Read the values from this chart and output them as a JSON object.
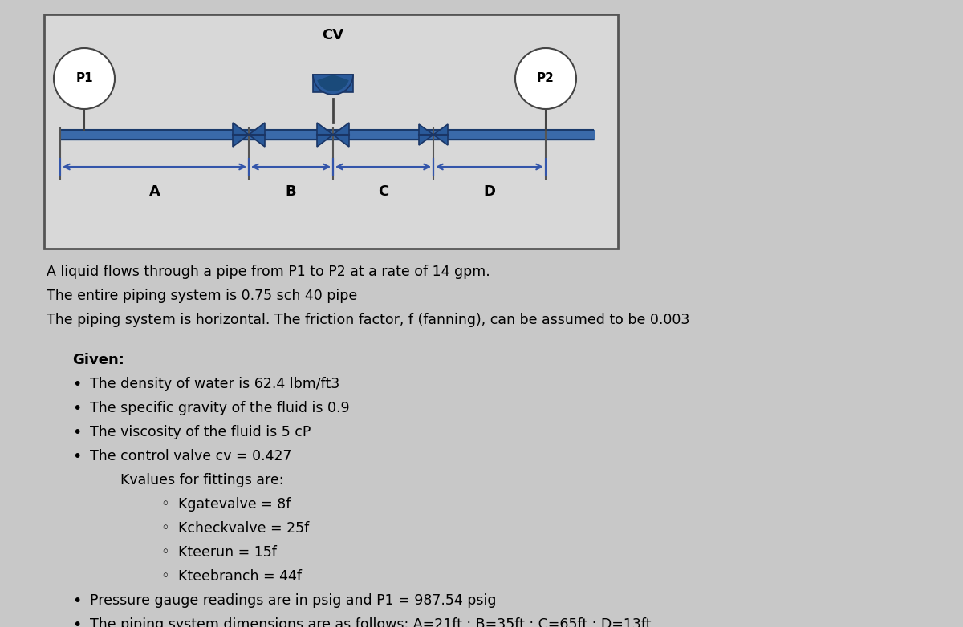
{
  "bg_color": "#c8c8c8",
  "box_facecolor": "#d8d8d8",
  "box_edgecolor": "#555555",
  "pipe_color": "#3a6aaa",
  "pipe_dark": "#1a3a6b",
  "valve_color": "#2a5a9a",
  "valve_dark": "#1a3565",
  "p1_label": "P1",
  "p2_label": "P2",
  "cv_label": "CV",
  "dim_labels": [
    "A",
    "B",
    "C",
    "D"
  ],
  "line1": "A liquid flows through a pipe from P1 to P2 at a rate of 14 gpm.",
  "line2": "The entire piping system is 0.75 sch 40 pipe",
  "line3": "The piping system is horizontal. The friction factor, f (fanning), can be assumed to be 0.003",
  "given_title": "Given:",
  "bullet1": "The density of water is 62.4 lbm/ft3",
  "bullet2": "The specific gravity of the fluid is 0.9",
  "bullet3": "The viscosity of the fluid is 5 cP",
  "bullet4": "The control valve cv = 0.427",
  "kvalues_title": "Kvalues for fittings are:",
  "sub1": "Kgatevalve = 8f",
  "sub2": "Kcheckvalve = 25f",
  "sub3": "Kteerun = 15f",
  "sub4": "Kteebranch = 44f",
  "bullet5": "Pressure gauge readings are in psig and P1 = 987.54 psig",
  "bullet6": "The piping system dimensions are as follows: A=21ft ; B=35ft ; C=65ft ; D=13ft"
}
